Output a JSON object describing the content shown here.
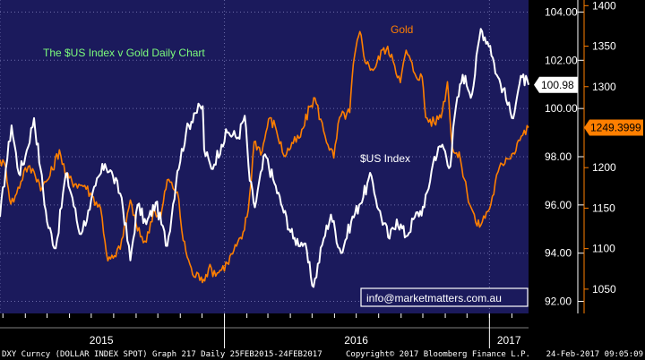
{
  "chart_data": {
    "type": "line",
    "title": "The $US Index v Gold Daily Chart",
    "x_labels": [
      "2015",
      "2016",
      "2017"
    ],
    "left_axis": {
      "ticks": [
        "104.00",
        "102.00",
        "100.00",
        "98.00",
        "96.00",
        "94.00",
        "92.00"
      ],
      "values": [
        104,
        102,
        100,
        98,
        96,
        94,
        92
      ],
      "ylim": [
        91.5,
        104.5
      ]
    },
    "right_axis": {
      "ticks": [
        "1400",
        "1350",
        "1300",
        "1250",
        "1200",
        "1150",
        "1100",
        "1050"
      ],
      "values": [
        1400,
        1350,
        1300,
        1250,
        1200,
        1150,
        1100,
        1050
      ],
      "ylim": [
        1020,
        1407
      ]
    },
    "date_range": [
      "2015-02-25",
      "2017-02-24"
    ],
    "series": [
      {
        "name": "$US Index",
        "axis": "left",
        "color": "#ffffff",
        "last_value": "100.98",
        "points": [
          [
            "2015-02-25",
            95.5
          ],
          [
            "2015-03-05",
            97.5
          ],
          [
            "2015-03-13",
            99.3
          ],
          [
            "2015-03-23",
            97.3
          ],
          [
            "2015-04-01",
            98.0
          ],
          [
            "2015-04-13",
            99.6
          ],
          [
            "2015-04-22",
            97.5
          ],
          [
            "2015-05-01",
            95.3
          ],
          [
            "2015-05-13",
            94.2
          ],
          [
            "2015-05-27",
            97.3
          ],
          [
            "2015-06-05",
            96.3
          ],
          [
            "2015-06-15",
            94.8
          ],
          [
            "2015-06-29",
            95.8
          ],
          [
            "2015-07-07",
            96.8
          ],
          [
            "2015-07-20",
            97.7
          ],
          [
            "2015-07-31",
            97.2
          ],
          [
            "2015-08-12",
            96.3
          ],
          [
            "2015-08-24",
            93.7
          ],
          [
            "2015-09-03",
            96.0
          ],
          [
            "2015-09-15",
            95.2
          ],
          [
            "2015-09-28",
            96.1
          ],
          [
            "2015-10-14",
            94.3
          ],
          [
            "2015-10-28",
            97.4
          ],
          [
            "2015-11-09",
            99.0
          ],
          [
            "2015-11-20",
            99.8
          ],
          [
            "2015-12-02",
            100.1
          ],
          [
            "2015-12-04",
            98.3
          ],
          [
            "2015-12-14",
            97.5
          ],
          [
            "2015-12-28",
            98.5
          ],
          [
            "2016-01-05",
            99.0
          ],
          [
            "2016-01-20",
            98.8
          ],
          [
            "2016-01-29",
            99.7
          ],
          [
            "2016-02-05",
            97.0
          ],
          [
            "2016-02-12",
            95.9
          ],
          [
            "2016-02-26",
            98.1
          ],
          [
            "2016-03-10",
            96.9
          ],
          [
            "2016-03-21",
            95.9
          ],
          [
            "2016-04-05",
            94.6
          ],
          [
            "2016-04-20",
            94.4
          ],
          [
            "2016-05-03",
            92.6
          ],
          [
            "2016-05-17",
            94.6
          ],
          [
            "2016-05-27",
            95.6
          ],
          [
            "2016-06-10",
            94.0
          ],
          [
            "2016-06-24",
            95.3
          ],
          [
            "2016-07-05",
            96.0
          ],
          [
            "2016-07-22",
            97.2
          ],
          [
            "2016-08-01",
            95.8
          ],
          [
            "2016-08-16",
            94.6
          ],
          [
            "2016-08-26",
            95.4
          ],
          [
            "2016-09-08",
            94.7
          ],
          [
            "2016-09-20",
            95.5
          ],
          [
            "2016-10-03",
            95.9
          ],
          [
            "2016-10-17",
            98.0
          ],
          [
            "2016-10-28",
            98.5
          ],
          [
            "2016-11-08",
            97.6
          ],
          [
            "2016-11-14",
            99.7
          ],
          [
            "2016-11-25",
            101.4
          ],
          [
            "2016-12-08",
            100.6
          ],
          [
            "2016-12-20",
            103.3
          ],
          [
            "2017-01-02",
            102.6
          ],
          [
            "2017-01-11",
            101.4
          ],
          [
            "2017-01-20",
            100.8
          ],
          [
            "2017-02-01",
            99.6
          ],
          [
            "2017-02-10",
            100.8
          ],
          [
            "2017-02-15",
            101.3
          ],
          [
            "2017-02-24",
            100.98
          ]
        ]
      },
      {
        "name": "Gold",
        "axis": "right",
        "color": "#ff7f00",
        "last_value": "1249.3999",
        "points": [
          [
            "2015-02-25",
            1210
          ],
          [
            "2015-03-05",
            1200
          ],
          [
            "2015-03-12",
            1155
          ],
          [
            "2015-03-20",
            1168
          ],
          [
            "2015-04-01",
            1200
          ],
          [
            "2015-04-13",
            1195
          ],
          [
            "2015-04-24",
            1175
          ],
          [
            "2015-05-05",
            1190
          ],
          [
            "2015-05-18",
            1222
          ],
          [
            "2015-05-28",
            1188
          ],
          [
            "2015-06-10",
            1180
          ],
          [
            "2015-06-22",
            1178
          ],
          [
            "2015-07-02",
            1165
          ],
          [
            "2015-07-14",
            1150
          ],
          [
            "2015-07-24",
            1085
          ],
          [
            "2015-08-04",
            1090
          ],
          [
            "2015-08-14",
            1115
          ],
          [
            "2015-08-24",
            1160
          ],
          [
            "2015-09-03",
            1122
          ],
          [
            "2015-09-15",
            1108
          ],
          [
            "2015-09-25",
            1148
          ],
          [
            "2015-10-05",
            1138
          ],
          [
            "2015-10-14",
            1185
          ],
          [
            "2015-10-28",
            1170
          ],
          [
            "2015-11-05",
            1110
          ],
          [
            "2015-11-18",
            1068
          ],
          [
            "2015-11-30",
            1065
          ],
          [
            "2015-12-03",
            1062
          ],
          [
            "2015-12-10",
            1075
          ],
          [
            "2015-12-22",
            1070
          ],
          [
            "2016-01-05",
            1082
          ],
          [
            "2016-01-14",
            1098
          ],
          [
            "2016-01-25",
            1112
          ],
          [
            "2016-02-03",
            1148
          ],
          [
            "2016-02-11",
            1232
          ],
          [
            "2016-02-22",
            1220
          ],
          [
            "2016-03-02",
            1260
          ],
          [
            "2016-03-11",
            1252
          ],
          [
            "2016-03-23",
            1215
          ],
          [
            "2016-04-05",
            1230
          ],
          [
            "2016-04-15",
            1238
          ],
          [
            "2016-04-28",
            1275
          ],
          [
            "2016-05-05",
            1286
          ],
          [
            "2016-05-17",
            1245
          ],
          [
            "2016-05-31",
            1212
          ],
          [
            "2016-06-08",
            1262
          ],
          [
            "2016-06-22",
            1268
          ],
          [
            "2016-06-27",
            1328
          ],
          [
            "2016-07-06",
            1368
          ],
          [
            "2016-07-15",
            1328
          ],
          [
            "2016-07-26",
            1322
          ],
          [
            "2016-08-08",
            1348
          ],
          [
            "2016-08-19",
            1340
          ],
          [
            "2016-08-31",
            1305
          ],
          [
            "2016-09-08",
            1345
          ],
          [
            "2016-09-20",
            1316
          ],
          [
            "2016-09-30",
            1312
          ],
          [
            "2016-10-05",
            1262
          ],
          [
            "2016-10-17",
            1255
          ],
          [
            "2016-10-28",
            1270
          ],
          [
            "2016-11-04",
            1306
          ],
          [
            "2016-11-11",
            1224
          ],
          [
            "2016-11-22",
            1210
          ],
          [
            "2016-12-01",
            1170
          ],
          [
            "2016-12-15",
            1128
          ],
          [
            "2016-12-22",
            1133
          ],
          [
            "2017-01-03",
            1155
          ],
          [
            "2017-01-13",
            1195
          ],
          [
            "2017-01-24",
            1212
          ],
          [
            "2017-02-03",
            1218
          ],
          [
            "2017-02-10",
            1234
          ],
          [
            "2017-02-16",
            1240
          ],
          [
            "2017-02-24",
            1249.4
          ]
        ]
      }
    ],
    "annotations": {
      "gold_label": "Gold",
      "usd_label": "$US Index",
      "watermark": "info@marketmatters.com.au"
    },
    "grid": true,
    "legend": "none"
  },
  "footer": {
    "left": "DXY Curncy (DOLLAR INDEX SPOT) Graph 217  Daily 25FEB2015-24FEB2017",
    "center": "Copyright© 2017 Bloomberg Finance L.P.",
    "right": "24-Feb-2017 09:05:09"
  },
  "colors": {
    "background": "#1b1a5c",
    "border": "#000000",
    "usd": "#ffffff",
    "gold": "#ff7f00",
    "title": "#7CFC7C"
  }
}
